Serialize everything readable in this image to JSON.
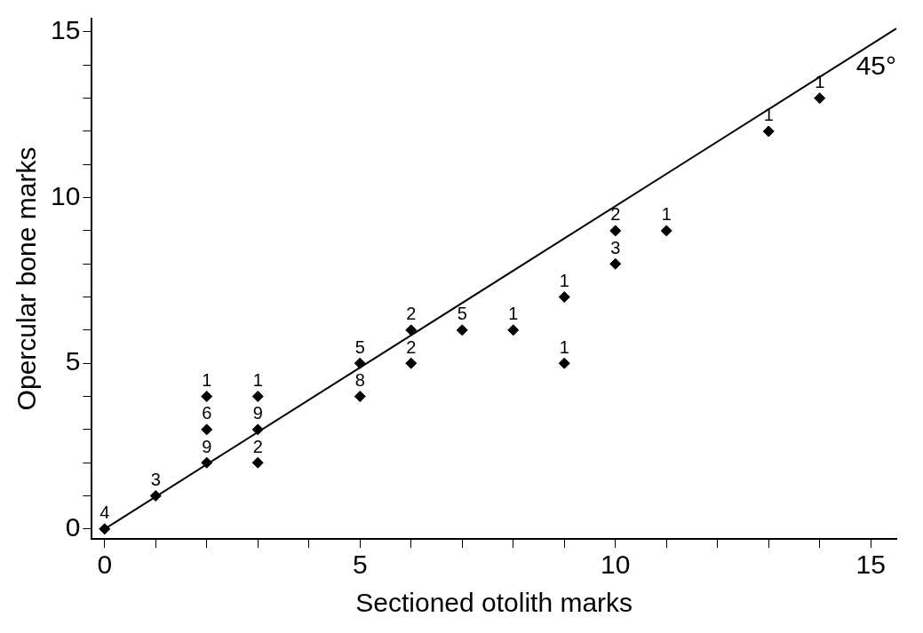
{
  "chart_data": {
    "type": "scatter",
    "xlabel": "Sectioned otolith marks",
    "ylabel": "Opercular bone marks",
    "xlim": [
      -0.25,
      15.5
    ],
    "ylim": [
      -0.3,
      15.4
    ],
    "xticks": [
      0,
      {
        "value": 1,
        "label": null
      },
      {
        "value": 2,
        "label": null
      },
      {
        "value": 3,
        "label": null
      },
      {
        "value": 4,
        "label": null
      },
      5,
      {
        "value": 6,
        "label": null
      },
      {
        "value": 7,
        "label": null
      },
      {
        "value": 8,
        "label": null
      },
      {
        "value": 9,
        "label": null
      },
      10,
      {
        "value": 11,
        "label": null
      },
      {
        "value": 12,
        "label": null
      },
      {
        "value": 13,
        "label": null
      },
      {
        "value": 14,
        "label": null
      },
      15
    ],
    "yticks": [
      0,
      {
        "value": 1,
        "label": null
      },
      {
        "value": 2,
        "label": null
      },
      {
        "value": 3,
        "label": null
      },
      {
        "value": 4,
        "label": null
      },
      5,
      {
        "value": 6,
        "label": null
      },
      {
        "value": 7,
        "label": null
      },
      {
        "value": 8,
        "label": null
      },
      {
        "value": 9,
        "label": null
      },
      10,
      {
        "value": 11,
        "label": null
      },
      {
        "value": 12,
        "label": null
      },
      {
        "value": 13,
        "label": null
      },
      {
        "value": 14,
        "label": null
      },
      15
    ],
    "grid": false,
    "legend": false,
    "marker": "diamond",
    "series": [
      {
        "color": "#000000",
        "x": [
          0,
          1,
          2,
          2,
          2,
          3,
          3,
          3,
          5,
          5,
          6,
          6,
          7,
          8,
          9,
          9,
          10,
          10,
          11,
          13,
          14
        ],
        "values": [
          0,
          1,
          2,
          3,
          4,
          2,
          3,
          4,
          4,
          5,
          5,
          6,
          6,
          6,
          5,
          7,
          8,
          9,
          9,
          12,
          13
        ]
      },
      {
        "type": "line",
        "color": "#000000",
        "marker": "none",
        "x": [
          0,
          15.5
        ],
        "values": [
          0,
          15.1
        ]
      }
    ],
    "annotations": [
      "45°",
      {
        "text": "4",
        "x": 0,
        "y": 0
      },
      {
        "text": "3",
        "x": 1,
        "y": 1
      },
      {
        "text": "9",
        "x": 2,
        "y": 2
      },
      {
        "text": "6",
        "x": 2,
        "y": 3
      },
      {
        "text": "1",
        "x": 2,
        "y": 4
      },
      {
        "text": "2",
        "x": 3,
        "y": 2
      },
      {
        "text": "9",
        "x": 3,
        "y": 3
      },
      {
        "text": "1",
        "x": 3,
        "y": 4
      },
      {
        "text": "8",
        "x": 5,
        "y": 4
      },
      {
        "text": "5",
        "x": 5,
        "y": 5
      },
      {
        "text": "2",
        "x": 6,
        "y": 5
      },
      {
        "text": "2",
        "x": 6,
        "y": 6
      },
      {
        "text": "5",
        "x": 7,
        "y": 6
      },
      {
        "text": "1",
        "x": 8,
        "y": 6
      },
      {
        "text": "1",
        "x": 9,
        "y": 5
      },
      {
        "text": "1",
        "x": 9,
        "y": 7
      },
      {
        "text": "3",
        "x": 10,
        "y": 8
      },
      {
        "text": "2",
        "x": 10,
        "y": 9
      },
      {
        "text": "1",
        "x": 11,
        "y": 9
      },
      {
        "text": "1",
        "x": 13,
        "y": 12
      },
      {
        "text": "1",
        "x": 14,
        "y": 13
      }
    ]
  }
}
